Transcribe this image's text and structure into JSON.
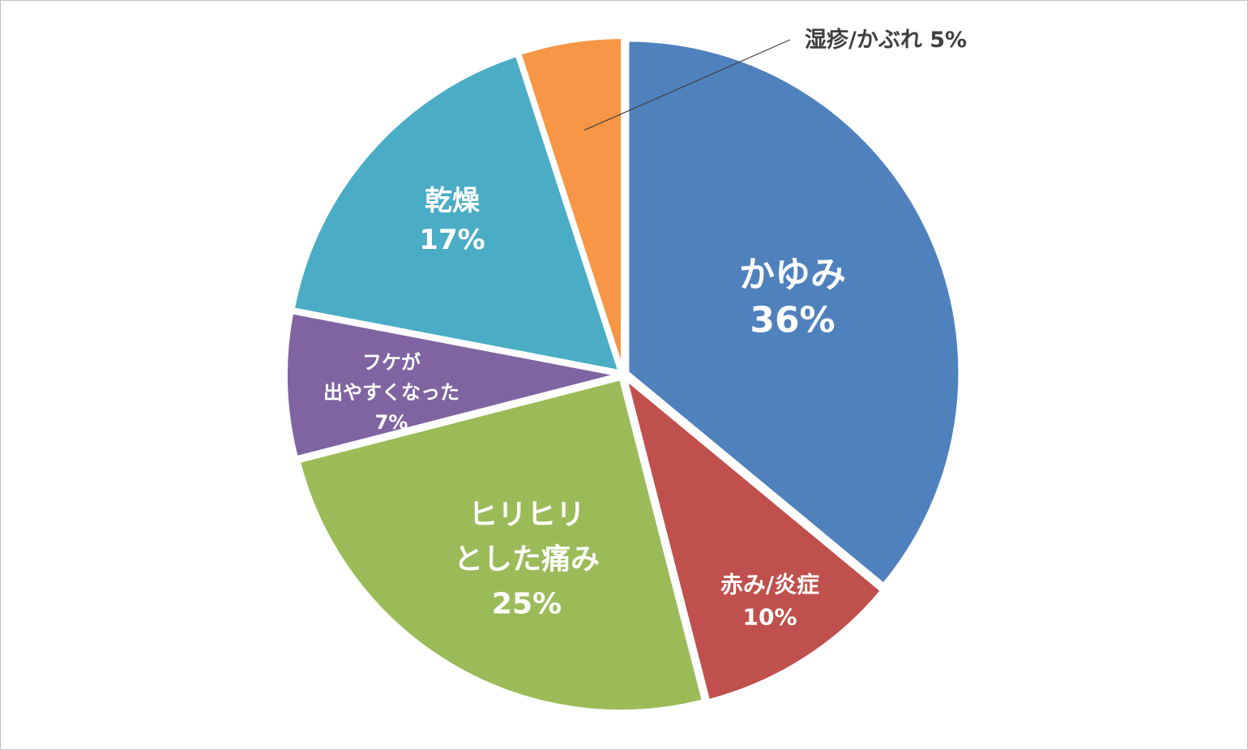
{
  "chart_data": {
    "type": "pie",
    "start_angle_deg": 0,
    "direction": "clockwise",
    "slices": [
      {
        "label_lines": [
          "かゆみ",
          "36%"
        ],
        "label": "かゆみ",
        "value": 36,
        "color": "#4F81BD",
        "label_style": "large"
      },
      {
        "label_lines": [
          "赤み/炎症",
          "10%"
        ],
        "label": "赤み/炎症",
        "value": 10,
        "color": "#C0504D",
        "label_style": "small"
      },
      {
        "label_lines": [
          "ヒリヒリ",
          "とした痛み",
          "25%"
        ],
        "label": "ヒリヒリとした痛み",
        "value": 25,
        "color": "#9BBB59",
        "label_style": "large"
      },
      {
        "label_lines": [
          "フケが",
          "出やすくなった",
          "7%"
        ],
        "label": "フケが出やすくなった",
        "value": 7,
        "color": "#8064A2",
        "label_style": "tiny"
      },
      {
        "label_lines": [
          "乾燥",
          "17%"
        ],
        "label": "乾燥",
        "value": 17,
        "color": "#4BACC6",
        "label_style": "medium"
      },
      {
        "label_lines": [
          "湿疹/かぶれ 5%"
        ],
        "label": "湿疹/かぶれ",
        "value": 5,
        "color": "#F79646",
        "label_style": "outside"
      }
    ]
  }
}
